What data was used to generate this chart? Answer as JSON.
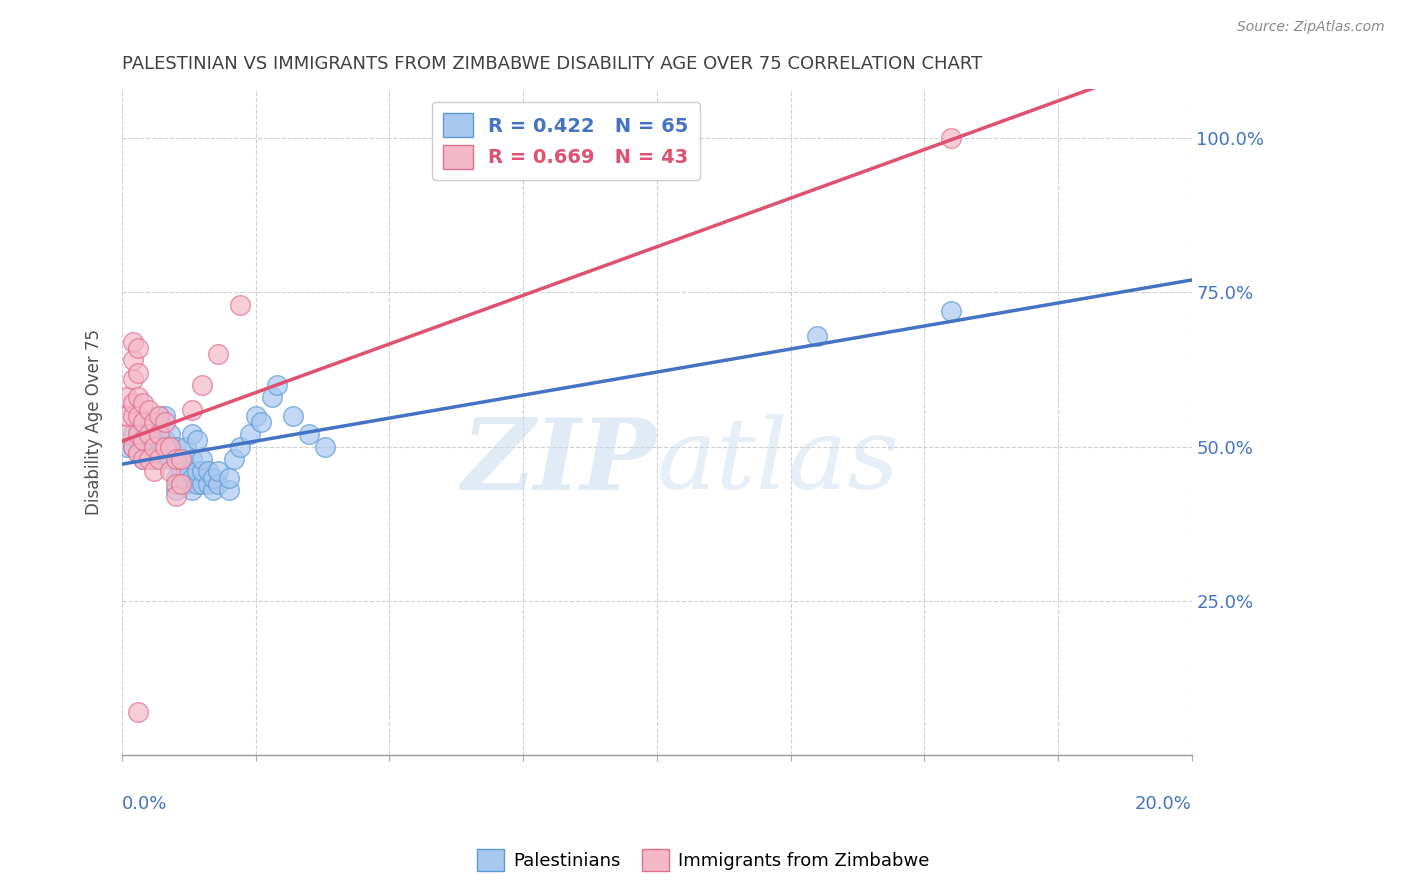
{
  "title": "PALESTINIAN VS IMMIGRANTS FROM ZIMBABWE DISABILITY AGE OVER 75 CORRELATION CHART",
  "source": "Source: ZipAtlas.com",
  "ylabel": "Disability Age Over 75",
  "yticks": [
    0.0,
    0.25,
    0.5,
    0.75,
    1.0
  ],
  "ytick_labels": [
    "",
    "25.0%",
    "50.0%",
    "75.0%",
    "100.0%"
  ],
  "xlim": [
    0.0,
    0.2
  ],
  "ylim": [
    0.0,
    1.08
  ],
  "blue_R": 0.422,
  "blue_N": 65,
  "pink_R": 0.669,
  "pink_N": 43,
  "legend_label_blue": "Palestinians",
  "legend_label_pink": "Immigrants from Zimbabwe",
  "watermark_zip": "ZIP",
  "watermark_atlas": "atlas",
  "blue_color": "#A8C8F0",
  "pink_color": "#F5B8C8",
  "blue_edge_color": "#5B9BD5",
  "pink_edge_color": "#E07090",
  "blue_line_color": "#4472C4",
  "pink_line_color": "#E05070",
  "axis_color": "#4472C4",
  "title_color": "#404040",
  "grid_color": "#D0D0D0",
  "blue_scatter": [
    [
      0.001,
      0.5
    ],
    [
      0.002,
      0.5
    ],
    [
      0.002,
      0.52
    ],
    [
      0.003,
      0.49
    ],
    [
      0.003,
      0.51
    ],
    [
      0.003,
      0.53
    ],
    [
      0.004,
      0.48
    ],
    [
      0.004,
      0.5
    ],
    [
      0.004,
      0.52
    ],
    [
      0.005,
      0.49
    ],
    [
      0.005,
      0.51
    ],
    [
      0.005,
      0.5
    ],
    [
      0.006,
      0.48
    ],
    [
      0.006,
      0.5
    ],
    [
      0.006,
      0.52
    ],
    [
      0.007,
      0.49
    ],
    [
      0.007,
      0.51
    ],
    [
      0.007,
      0.53
    ],
    [
      0.007,
      0.55
    ],
    [
      0.008,
      0.49
    ],
    [
      0.008,
      0.51
    ],
    [
      0.008,
      0.55
    ],
    [
      0.009,
      0.48
    ],
    [
      0.009,
      0.5
    ],
    [
      0.009,
      0.52
    ],
    [
      0.01,
      0.48
    ],
    [
      0.01,
      0.5
    ],
    [
      0.01,
      0.43
    ],
    [
      0.01,
      0.45
    ],
    [
      0.011,
      0.44
    ],
    [
      0.011,
      0.46
    ],
    [
      0.011,
      0.48
    ],
    [
      0.012,
      0.44
    ],
    [
      0.012,
      0.46
    ],
    [
      0.012,
      0.5
    ],
    [
      0.013,
      0.43
    ],
    [
      0.013,
      0.45
    ],
    [
      0.013,
      0.48
    ],
    [
      0.013,
      0.52
    ],
    [
      0.014,
      0.44
    ],
    [
      0.014,
      0.46
    ],
    [
      0.014,
      0.51
    ],
    [
      0.015,
      0.44
    ],
    [
      0.015,
      0.46
    ],
    [
      0.015,
      0.48
    ],
    [
      0.016,
      0.44
    ],
    [
      0.016,
      0.46
    ],
    [
      0.017,
      0.43
    ],
    [
      0.017,
      0.45
    ],
    [
      0.018,
      0.44
    ],
    [
      0.018,
      0.46
    ],
    [
      0.02,
      0.43
    ],
    [
      0.02,
      0.45
    ],
    [
      0.021,
      0.48
    ],
    [
      0.022,
      0.5
    ],
    [
      0.024,
      0.52
    ],
    [
      0.025,
      0.55
    ],
    [
      0.026,
      0.54
    ],
    [
      0.028,
      0.58
    ],
    [
      0.029,
      0.6
    ],
    [
      0.032,
      0.55
    ],
    [
      0.035,
      0.52
    ],
    [
      0.038,
      0.5
    ],
    [
      0.13,
      0.68
    ],
    [
      0.155,
      0.72
    ]
  ],
  "pink_scatter": [
    [
      0.001,
      0.52
    ],
    [
      0.001,
      0.55
    ],
    [
      0.001,
      0.58
    ],
    [
      0.002,
      0.5
    ],
    [
      0.002,
      0.55
    ],
    [
      0.002,
      0.57
    ],
    [
      0.002,
      0.61
    ],
    [
      0.002,
      0.64
    ],
    [
      0.002,
      0.67
    ],
    [
      0.003,
      0.49
    ],
    [
      0.003,
      0.52
    ],
    [
      0.003,
      0.55
    ],
    [
      0.003,
      0.58
    ],
    [
      0.003,
      0.62
    ],
    [
      0.003,
      0.66
    ],
    [
      0.004,
      0.48
    ],
    [
      0.004,
      0.51
    ],
    [
      0.004,
      0.54
    ],
    [
      0.004,
      0.57
    ],
    [
      0.005,
      0.48
    ],
    [
      0.005,
      0.52
    ],
    [
      0.005,
      0.56
    ],
    [
      0.006,
      0.46
    ],
    [
      0.006,
      0.5
    ],
    [
      0.006,
      0.54
    ],
    [
      0.007,
      0.48
    ],
    [
      0.007,
      0.52
    ],
    [
      0.007,
      0.55
    ],
    [
      0.008,
      0.5
    ],
    [
      0.008,
      0.54
    ],
    [
      0.009,
      0.46
    ],
    [
      0.009,
      0.5
    ],
    [
      0.01,
      0.44
    ],
    [
      0.01,
      0.48
    ],
    [
      0.01,
      0.42
    ],
    [
      0.011,
      0.44
    ],
    [
      0.011,
      0.48
    ],
    [
      0.013,
      0.56
    ],
    [
      0.015,
      0.6
    ],
    [
      0.018,
      0.65
    ],
    [
      0.022,
      0.73
    ],
    [
      0.003,
      0.07
    ],
    [
      0.155,
      1.0
    ]
  ]
}
